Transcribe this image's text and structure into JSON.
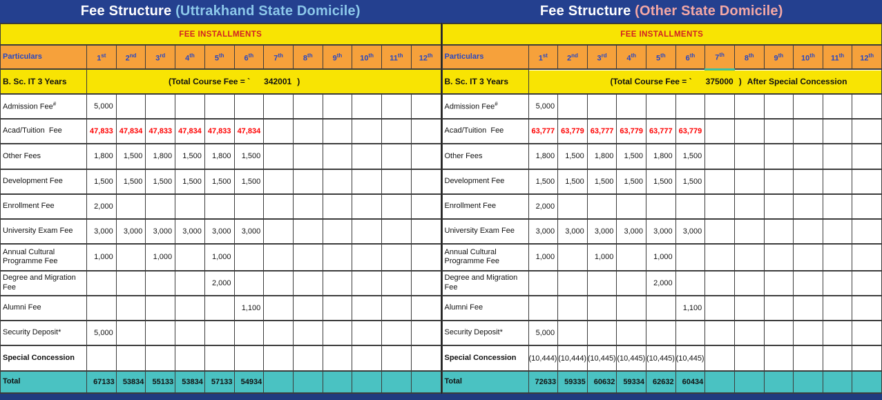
{
  "titles": {
    "left": {
      "prefix": "Fee Structure ",
      "suffix": "(Uttrakhand State Domicile)"
    },
    "right": {
      "prefix": "Fee Structure ",
      "suffix": "(Other State Domicile)"
    }
  },
  "colors": {
    "navy_header": "#24408F",
    "navy_footer": "#203B7E",
    "yellow": "#F8E403",
    "orange": "#F6A13B",
    "banner_red": "#D12025",
    "value_red": "#FE0000",
    "header_blue": "#2747C4",
    "teal_total": "#4AC2C2",
    "title_suffix_blue": "#8CC8EA",
    "title_suffix_pink": "#F4A8A5",
    "selection_teal": "#3DBFA0"
  },
  "tables": {
    "left": {
      "banner": "FEE INSTALLMENTS",
      "header": {
        "particulars": "Particulars",
        "installments": [
          {
            "n": "1",
            "suf": "st"
          },
          {
            "n": "2",
            "suf": "nd"
          },
          {
            "n": "3",
            "suf": "rd"
          },
          {
            "n": "4",
            "suf": "th"
          },
          {
            "n": "5",
            "suf": "th"
          },
          {
            "n": "6",
            "suf": "th"
          },
          {
            "n": "7",
            "suf": "th"
          },
          {
            "n": "8",
            "suf": "th"
          },
          {
            "n": "9",
            "suf": "th"
          },
          {
            "n": "10",
            "suf": "th"
          },
          {
            "n": "11",
            "suf": "th"
          },
          {
            "n": "12",
            "suf": "th"
          }
        ],
        "selected_column": null
      },
      "course": {
        "name": "B. Sc. IT 3 Years",
        "fee_label": "(Total Course Fee = `",
        "fee_amount": "342001",
        "fee_close": ")",
        "fee_note": ""
      },
      "rows": [
        {
          "label": "Admission Fee",
          "sup": "#",
          "style": "normal",
          "values": [
            "5,000",
            "",
            "",
            "",
            "",
            "",
            "",
            "",
            "",
            "",
            "",
            ""
          ]
        },
        {
          "label": "Acad/Tuition  Fee",
          "style": "red",
          "values": [
            "47,833",
            "47,834",
            "47,833",
            "47,834",
            "47,833",
            "47,834",
            "",
            "",
            "",
            "",
            "",
            ""
          ]
        },
        {
          "label": "Other Fees",
          "style": "normal",
          "values": [
            "1,800",
            "1,500",
            "1,800",
            "1,500",
            "1,800",
            "1,500",
            "",
            "",
            "",
            "",
            "",
            ""
          ]
        },
        {
          "label": "Development Fee",
          "style": "normal",
          "values": [
            "1,500",
            "1,500",
            "1,500",
            "1,500",
            "1,500",
            "1,500",
            "",
            "",
            "",
            "",
            "",
            ""
          ]
        },
        {
          "label": "Enrollment Fee",
          "style": "normal",
          "values": [
            "2,000",
            "",
            "",
            "",
            "",
            "",
            "",
            "",
            "",
            "",
            "",
            ""
          ]
        },
        {
          "label": "University Exam Fee",
          "style": "normal",
          "values": [
            "3,000",
            "3,000",
            "3,000",
            "3,000",
            "3,000",
            "3,000",
            "",
            "",
            "",
            "",
            "",
            ""
          ]
        },
        {
          "label": "Annual Cultural Programme Fee",
          "style": "normal",
          "tall": true,
          "values": [
            "1,000",
            "",
            "1,000",
            "",
            "1,000",
            "",
            "",
            "",
            "",
            "",
            "",
            ""
          ]
        },
        {
          "label": "Degree and Migration Fee",
          "style": "normal",
          "values": [
            "",
            "",
            "",
            "",
            "2,000",
            "",
            "",
            "",
            "",
            "",
            "",
            ""
          ]
        },
        {
          "label": "Alumni Fee",
          "style": "normal",
          "values": [
            "",
            "",
            "",
            "",
            "",
            "1,100",
            "",
            "",
            "",
            "",
            "",
            ""
          ]
        },
        {
          "label": "Security Deposit*",
          "style": "normal",
          "values": [
            "5,000",
            "",
            "",
            "",
            "",
            "",
            "",
            "",
            "",
            "",
            "",
            ""
          ]
        },
        {
          "label": "Special Concession",
          "style": "bold",
          "values": [
            "",
            "",
            "",
            "",
            "",
            "",
            "",
            "",
            "",
            "",
            "",
            ""
          ]
        }
      ],
      "total": {
        "label": "Total",
        "values": [
          "67133",
          "53834",
          "55133",
          "53834",
          "57133",
          "54934",
          "",
          "",
          "",
          "",
          "",
          ""
        ]
      }
    },
    "right": {
      "banner": "FEE INSTALLMENTS",
      "header": {
        "particulars": "Particulars",
        "installments": [
          {
            "n": "1",
            "suf": "st"
          },
          {
            "n": "2",
            "suf": "nd"
          },
          {
            "n": "3",
            "suf": "rd"
          },
          {
            "n": "4",
            "suf": "th"
          },
          {
            "n": "5",
            "suf": "th"
          },
          {
            "n": "6",
            "suf": "th"
          },
          {
            "n": "7",
            "suf": "th"
          },
          {
            "n": "8",
            "suf": "th"
          },
          {
            "n": "9",
            "suf": "th"
          },
          {
            "n": "10",
            "suf": "th"
          },
          {
            "n": "11",
            "suf": "th"
          },
          {
            "n": "12",
            "suf": "th"
          }
        ],
        "selected_column": 7
      },
      "course": {
        "name": "B. Sc. IT 3 Years",
        "fee_label": "(Total Course Fee = `",
        "fee_amount": "375000",
        "fee_close": ")",
        "fee_note": "After Special Concession"
      },
      "rows": [
        {
          "label": "Admission Fee",
          "sup": "#",
          "style": "normal",
          "values": [
            "5,000",
            "",
            "",
            "",
            "",
            "",
            "",
            "",
            "",
            "",
            "",
            ""
          ]
        },
        {
          "label": "Acad/Tuition  Fee",
          "style": "red",
          "values": [
            "63,777",
            "63,779",
            "63,777",
            "63,779",
            "63,777",
            "63,779",
            "",
            "",
            "",
            "",
            "",
            ""
          ]
        },
        {
          "label": "Other Fees",
          "style": "normal",
          "values": [
            "1,800",
            "1,500",
            "1,800",
            "1,500",
            "1,800",
            "1,500",
            "",
            "",
            "",
            "",
            "",
            ""
          ]
        },
        {
          "label": "Development Fee",
          "style": "normal",
          "values": [
            "1,500",
            "1,500",
            "1,500",
            "1,500",
            "1,500",
            "1,500",
            "",
            "",
            "",
            "",
            "",
            ""
          ]
        },
        {
          "label": "Enrollment Fee",
          "style": "normal",
          "values": [
            "2,000",
            "",
            "",
            "",
            "",
            "",
            "",
            "",
            "",
            "",
            "",
            ""
          ]
        },
        {
          "label": "University Exam Fee",
          "style": "normal",
          "values": [
            "3,000",
            "3,000",
            "3,000",
            "3,000",
            "3,000",
            "3,000",
            "",
            "",
            "",
            "",
            "",
            ""
          ]
        },
        {
          "label": "Annual Cultural Programme Fee",
          "style": "normal",
          "tall": true,
          "values": [
            "1,000",
            "",
            "1,000",
            "",
            "1,000",
            "",
            "",
            "",
            "",
            "",
            "",
            ""
          ]
        },
        {
          "label": "Degree and Migration Fee",
          "style": "normal",
          "values": [
            "",
            "",
            "",
            "",
            "2,000",
            "",
            "",
            "",
            "",
            "",
            "",
            ""
          ]
        },
        {
          "label": "Alumni Fee",
          "style": "normal",
          "values": [
            "",
            "",
            "",
            "",
            "",
            "1,100",
            "",
            "",
            "",
            "",
            "",
            ""
          ]
        },
        {
          "label": "Security Deposit*",
          "style": "normal",
          "values": [
            "5,000",
            "",
            "",
            "",
            "",
            "",
            "",
            "",
            "",
            "",
            "",
            ""
          ]
        },
        {
          "label": "Special Concession",
          "style": "bold",
          "values": [
            "(10,444)",
            "(10,444)",
            "(10,445)",
            "(10,445)",
            "(10,445)",
            "(10,445)",
            "",
            "",
            "",
            "",
            "",
            ""
          ]
        }
      ],
      "total": {
        "label": "Total",
        "values": [
          "72633",
          "59335",
          "60632",
          "59334",
          "62632",
          "60434",
          "",
          "",
          "",
          "",
          "",
          ""
        ]
      }
    }
  }
}
